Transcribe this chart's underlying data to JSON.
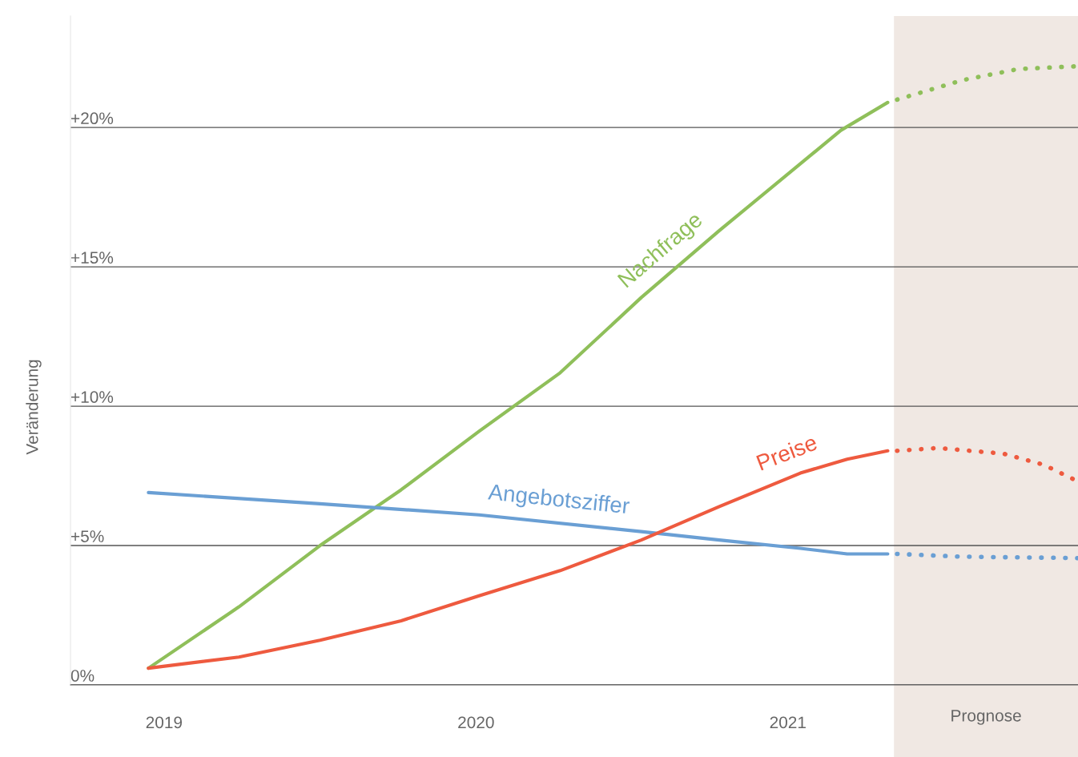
{
  "chart_data": {
    "type": "line",
    "ylabel": "Veränderung",
    "xlim": [
      2018.7,
      2021.93
    ],
    "ylim": [
      0,
      24
    ],
    "xticks": [
      2019,
      2020,
      2021
    ],
    "yticks": [
      {
        "value": 0,
        "label": "0%"
      },
      {
        "value": 5,
        "label": "+5%"
      },
      {
        "value": 10,
        "label": "+10%"
      },
      {
        "value": 15,
        "label": "+15%"
      },
      {
        "value": 20,
        "label": "+20%"
      }
    ],
    "grid": "y",
    "legend": false,
    "marker": "none",
    "bands": [
      {
        "axis": "x",
        "from": 2021.34,
        "to": 2021.93,
        "label": "Prognose",
        "color": "#f0e8e3"
      }
    ],
    "series": [
      {
        "name": "Nachfrage",
        "color": "#8fbf5a",
        "line_style": "solid",
        "x": [
          2018.95,
          2019.24,
          2019.5,
          2019.76,
          2020.01,
          2020.27,
          2020.53,
          2020.78,
          2021.04,
          2021.17,
          2021.32
        ],
        "values": [
          0.6,
          2.8,
          5.0,
          7.0,
          9.1,
          11.2,
          13.9,
          16.3,
          18.7,
          19.9,
          20.9
        ]
      },
      {
        "color": "#8fbf5a",
        "line_style": "dotted",
        "x": [
          2021.35,
          2021.56,
          2021.74,
          2021.93
        ],
        "values": [
          21.0,
          21.7,
          22.1,
          22.2
        ]
      },
      {
        "name": "Angebotsziffer",
        "color": "#6a9fd4",
        "line_style": "solid",
        "x": [
          2018.95,
          2019.5,
          2020.01,
          2020.53,
          2020.78,
          2021.04,
          2021.19,
          2021.32
        ],
        "values": [
          6.9,
          6.5,
          6.1,
          5.5,
          5.2,
          4.9,
          4.7,
          4.7
        ]
      },
      {
        "color": "#6a9fd4",
        "line_style": "dotted",
        "x": [
          2021.35,
          2021.56,
          2021.93
        ],
        "values": [
          4.7,
          4.6,
          4.55
        ]
      },
      {
        "name": "Preise",
        "color": "#ee5a3f",
        "line_style": "solid",
        "x": [
          2018.95,
          2019.24,
          2019.5,
          2019.76,
          2020.01,
          2020.27,
          2020.53,
          2020.78,
          2021.04,
          2021.19,
          2021.32
        ],
        "values": [
          0.6,
          1.0,
          1.6,
          2.3,
          3.2,
          4.1,
          5.2,
          6.4,
          7.6,
          8.1,
          8.4
        ]
      },
      {
        "color": "#ee5a3f",
        "line_style": "dotted",
        "x": [
          2021.35,
          2021.48,
          2021.69,
          2021.82,
          2021.93
        ],
        "values": [
          8.4,
          8.5,
          8.3,
          7.9,
          7.3
        ]
      }
    ]
  }
}
